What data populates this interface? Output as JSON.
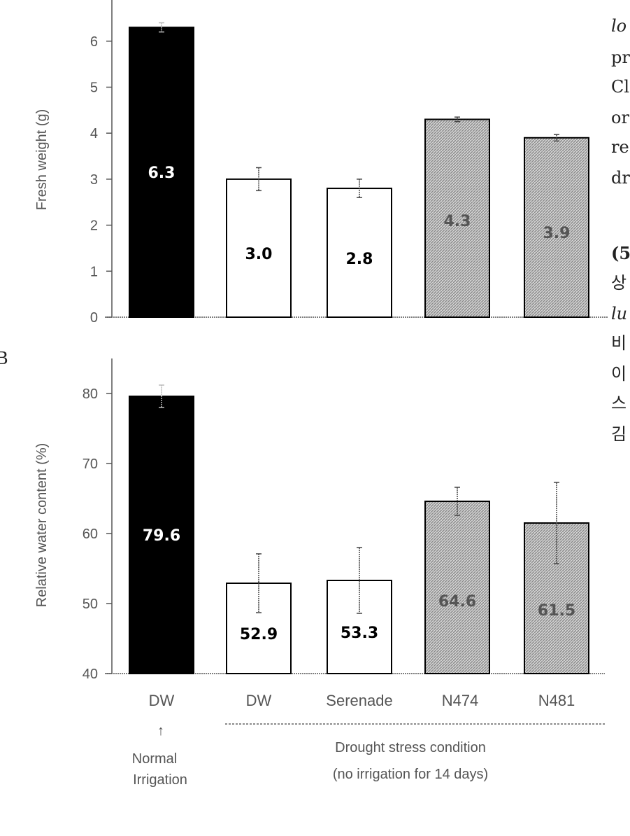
{
  "chart_data": [
    {
      "type": "bar",
      "panel": "top",
      "categories": [
        "DW",
        "DW",
        "Serenade",
        "N474",
        "N481"
      ],
      "values": [
        6.3,
        3.0,
        2.8,
        4.3,
        3.9
      ],
      "errors": [
        0.1,
        0.25,
        0.2,
        0.05,
        0.07
      ],
      "value_labels": [
        "6.3",
        "3.0",
        "2.8",
        "4.3",
        "3.9"
      ],
      "ylabel": "Fresh weight (g)",
      "ylim": [
        0,
        7
      ],
      "yticks": [
        "0",
        "1",
        "2",
        "3",
        "4",
        "5",
        "6"
      ],
      "bar_styles": [
        "black",
        "white",
        "white",
        "hatched",
        "hatched"
      ]
    },
    {
      "type": "bar",
      "panel": "bottom",
      "panel_letter": "B",
      "categories": [
        "DW",
        "DW",
        "Serenade",
        "N474",
        "N481"
      ],
      "values": [
        79.6,
        52.9,
        53.3,
        64.6,
        61.5
      ],
      "errors": [
        1.6,
        4.2,
        4.7,
        2.0,
        5.8
      ],
      "value_labels": [
        "79.6",
        "52.9",
        "53.3",
        "64.6",
        "61.5"
      ],
      "ylabel": "Relative water content (%)",
      "ylim": [
        40,
        85
      ],
      "yticks": [
        "40",
        "50",
        "60",
        "70",
        "80"
      ],
      "bar_styles": [
        "black",
        "white",
        "white",
        "hatched",
        "hatched"
      ]
    }
  ],
  "x_labels": [
    "DW",
    "DW",
    "Serenade",
    "N474",
    "N481"
  ],
  "annotations": {
    "arrow": "↑",
    "normal_line1": "Normal",
    "normal_line2": "Irrigation",
    "drought_line1": "Drought stress condition",
    "drought_line2": "(no irrigation for 14 days)"
  },
  "side_text": {
    "t1": "lo",
    "t2": "pr",
    "t3": "Cl",
    "t4": "or",
    "t5": "re",
    "t6": "dr",
    "t7": "(5",
    "t8": "상",
    "t9": "lu",
    "t10": "비",
    "t11": "이",
    "t12": "스",
    "t13": "김"
  },
  "colors": {
    "black_bar": "#000000",
    "white_bar": "#ffffff",
    "hatch_bg": "#d2d2d2",
    "hatch_line": "#8a8a8a",
    "axis": "#555555"
  }
}
